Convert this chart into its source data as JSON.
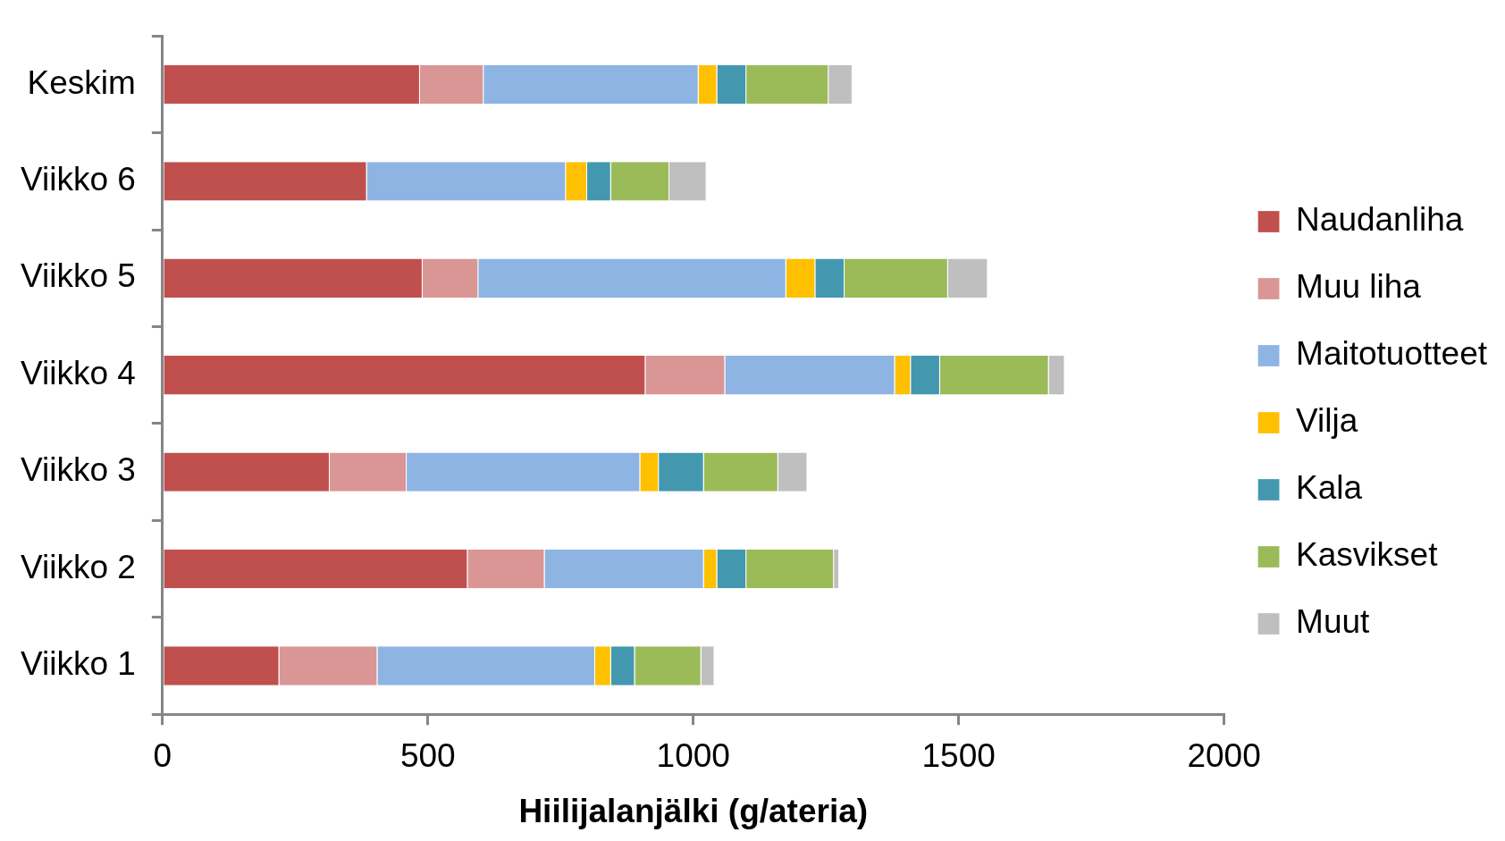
{
  "chart_data": {
    "type": "bar",
    "orientation": "horizontal",
    "stacked": true,
    "xlabel": "Hiilijalanjälki (g/ateria)",
    "categories": [
      "Keskim",
      "Viikko 6",
      "Viikko 5",
      "Viikko 4",
      "Viikko 3",
      "Viikko 2",
      "Viikko 1"
    ],
    "series": [
      {
        "name": "Naudanliha",
        "color": "#c0504d",
        "values": [
          485,
          385,
          490,
          910,
          315,
          575,
          220
        ]
      },
      {
        "name": "Muu liha",
        "color": "#d99694",
        "values": [
          120,
          0,
          105,
          150,
          145,
          145,
          185
        ]
      },
      {
        "name": "Maitotuotteet",
        "color": "#8eb4e3",
        "values": [
          405,
          375,
          580,
          320,
          440,
          300,
          410
        ]
      },
      {
        "name": "Vilja",
        "color": "#ffc000",
        "values": [
          35,
          40,
          55,
          30,
          35,
          25,
          30
        ]
      },
      {
        "name": "Kala",
        "color": "#4398b0",
        "values": [
          55,
          45,
          55,
          55,
          85,
          55,
          45
        ]
      },
      {
        "name": "Kasvikset",
        "color": "#9bbb59",
        "values": [
          155,
          110,
          195,
          205,
          140,
          165,
          125
        ]
      },
      {
        "name": "Muut",
        "color": "#bfbfbf",
        "values": [
          45,
          70,
          75,
          30,
          55,
          10,
          25
        ]
      }
    ],
    "xlim": [
      0,
      2000
    ],
    "xticks": [
      0,
      500,
      1000,
      1500,
      2000
    ],
    "grid": false,
    "legend": "right"
  }
}
